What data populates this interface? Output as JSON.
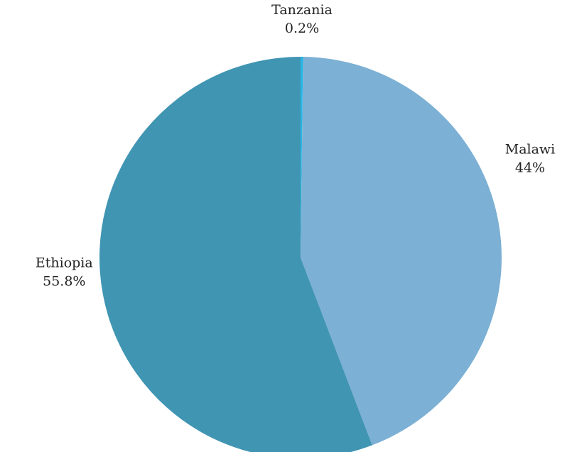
{
  "chart_data": {
    "type": "pie",
    "title": "",
    "start_angle_deg": 0,
    "direction": "clockwise",
    "slices": [
      {
        "name": "Tanzania",
        "value": 0.2,
        "value_label": "0.2%",
        "color": "#27b7e6"
      },
      {
        "name": "Malawi",
        "value": 44,
        "value_label": "44%",
        "color": "#7cb0d4"
      },
      {
        "name": "Ethiopia",
        "value": 55.8,
        "value_label": "55.8%",
        "color": "#4095b3"
      }
    ],
    "legend": "none"
  }
}
